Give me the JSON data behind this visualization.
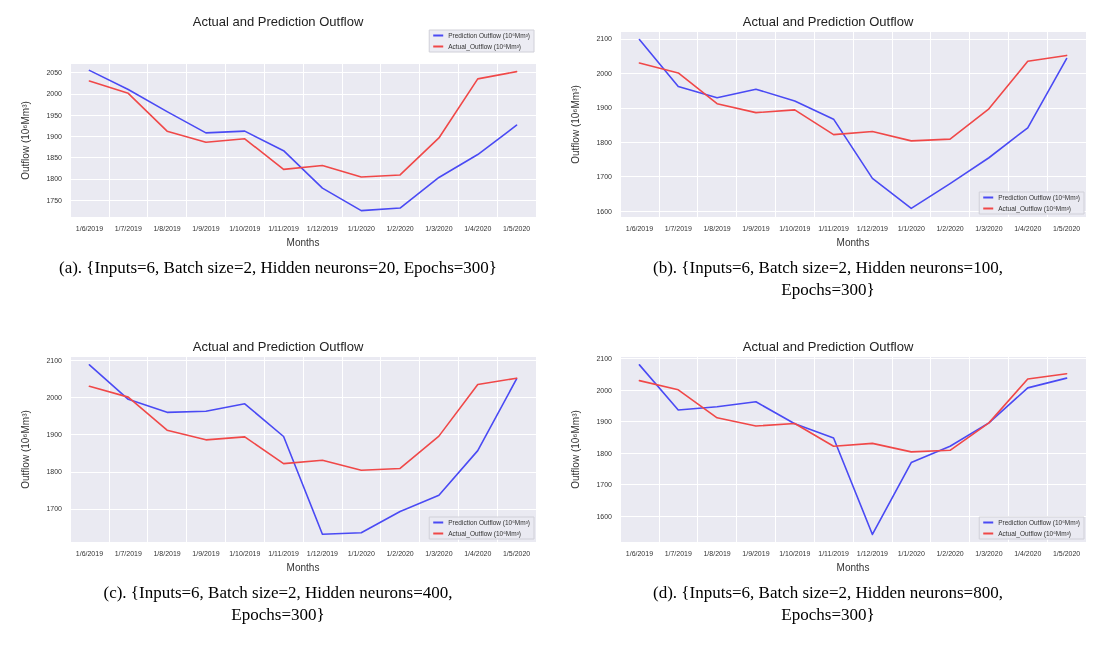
{
  "chart_data": [
    {
      "type": "line",
      "title": "Actual and Prediction Outflow",
      "xlabel": "Months",
      "ylabel": "Outflow (10⁶Mm³)",
      "categories": [
        "1/6/2019",
        "1/7/2019",
        "1/8/2019",
        "1/9/2019",
        "1/10/2019",
        "1/11/2019",
        "1/12/2019",
        "1/1/2020",
        "1/2/2020",
        "1/3/2020",
        "1/4/2020",
        "1/5/2020"
      ],
      "series": [
        {
          "name": "Prediction Outflow (10⁶Mm³)",
          "color": "#4a4af4",
          "values": [
            2055,
            2010,
            1958,
            1908,
            1912,
            1866,
            1778,
            1725,
            1731,
            1803,
            1857,
            1926
          ]
        },
        {
          "name": "Actual_Outflow (10⁶Mm³)",
          "color": "#f04848",
          "values": [
            2030,
            2001,
            1912,
            1886,
            1894,
            1822,
            1831,
            1804,
            1809,
            1896,
            2035,
            2052
          ]
        }
      ],
      "ylim": [
        1710,
        2070
      ],
      "yticks": [
        1750,
        1800,
        1850,
        1900,
        1950,
        2000,
        2050
      ],
      "grid": true,
      "legend": "top right",
      "marker": "none",
      "line_style": "solid",
      "annotations": [
        "(a). {Inputs=6, Batch size=2, Hidden neurons=20, Epochs=300}"
      ]
    },
    {
      "type": "line",
      "title": "Actual and Prediction Outflow",
      "xlabel": "Months",
      "ylabel": "Outflow (10⁶Mm³)",
      "categories": [
        "1/6/2019",
        "1/7/2019",
        "1/8/2019",
        "1/9/2019",
        "1/10/2019",
        "1/11/2019",
        "1/12/2019",
        "1/1/2020",
        "1/2/2020",
        "1/3/2020",
        "1/4/2020",
        "1/5/2020"
      ],
      "series": [
        {
          "name": "Prediction Outflow (10⁶Mm³)",
          "color": "#4a4af4",
          "values": [
            2098,
            1962,
            1929,
            1954,
            1920,
            1867,
            1695,
            1608,
            1680,
            1755,
            1842,
            2043
          ]
        },
        {
          "name": "Actual_Outflow (10⁶Mm³)",
          "color": "#f04848",
          "values": [
            2030,
            2001,
            1912,
            1886,
            1894,
            1822,
            1831,
            1804,
            1809,
            1897,
            2035,
            2052
          ]
        }
      ],
      "ylim": [
        1583,
        2120
      ],
      "yticks": [
        1600,
        1700,
        1800,
        1900,
        2000,
        2100
      ],
      "grid": true,
      "legend": "bottom right",
      "marker": "none",
      "line_style": "solid",
      "annotations": [
        "(b). {Inputs=6, Batch size=2, Hidden neurons=100, Epochs=300}"
      ]
    },
    {
      "type": "line",
      "title": "Actual and Prediction Outflow",
      "xlabel": "Months",
      "ylabel": "Outflow (10⁶Mm³)",
      "categories": [
        "1/6/2019",
        "1/7/2019",
        "1/8/2019",
        "1/9/2019",
        "1/10/2019",
        "1/11/2019",
        "1/12/2019",
        "1/1/2020",
        "1/2/2020",
        "1/3/2020",
        "1/4/2020",
        "1/5/2020"
      ],
      "series": [
        {
          "name": "Prediction Outflow (10⁶Mm³)",
          "color": "#4a4af4",
          "values": [
            2088,
            1995,
            1960,
            1963,
            1983,
            1895,
            1632,
            1636,
            1693,
            1737,
            1857,
            2050
          ]
        },
        {
          "name": "Actual_Outflow (10⁶Mm³)",
          "color": "#f04848",
          "values": [
            2030,
            2001,
            1912,
            1886,
            1894,
            1822,
            1831,
            1804,
            1809,
            1896,
            2035,
            2052
          ]
        }
      ],
      "ylim": [
        1611,
        2109
      ],
      "yticks": [
        1700,
        1800,
        1900,
        2000,
        2100
      ],
      "grid": true,
      "legend": "bottom right",
      "marker": "none",
      "line_style": "solid",
      "annotations": [
        "(c). {Inputs=6, Batch size=2, Hidden neurons=400, Epochs=300}"
      ]
    },
    {
      "type": "line",
      "title": "Actual and Prediction Outflow",
      "xlabel": "Months",
      "ylabel": "Outflow (10⁶Mm³)",
      "categories": [
        "1/6/2019",
        "1/7/2019",
        "1/8/2019",
        "1/9/2019",
        "1/10/2019",
        "1/11/2019",
        "1/12/2019",
        "1/1/2020",
        "1/2/2020",
        "1/3/2020",
        "1/4/2020",
        "1/5/2020"
      ],
      "series": [
        {
          "name": "Prediction Outflow (10⁶Mm³)",
          "color": "#4a4af4",
          "values": [
            2080,
            1937,
            1947,
            1963,
            1893,
            1848,
            1542,
            1770,
            1822,
            1896,
            2007,
            2038
          ]
        },
        {
          "name": "Actual_Outflow (10⁶Mm³)",
          "color": "#f04848",
          "values": [
            2030,
            2001,
            1912,
            1886,
            1894,
            1822,
            1831,
            1804,
            1809,
            1896,
            2035,
            2052
          ]
        }
      ],
      "ylim": [
        1518,
        2105
      ],
      "yticks": [
        1600,
        1700,
        1800,
        1900,
        2000,
        2100
      ],
      "grid": true,
      "legend": "bottom right",
      "marker": "none",
      "line_style": "solid",
      "annotations": [
        "(d). {Inputs=6, Batch size=2, Hidden neurons=800, Epochs=300}"
      ]
    }
  ]
}
